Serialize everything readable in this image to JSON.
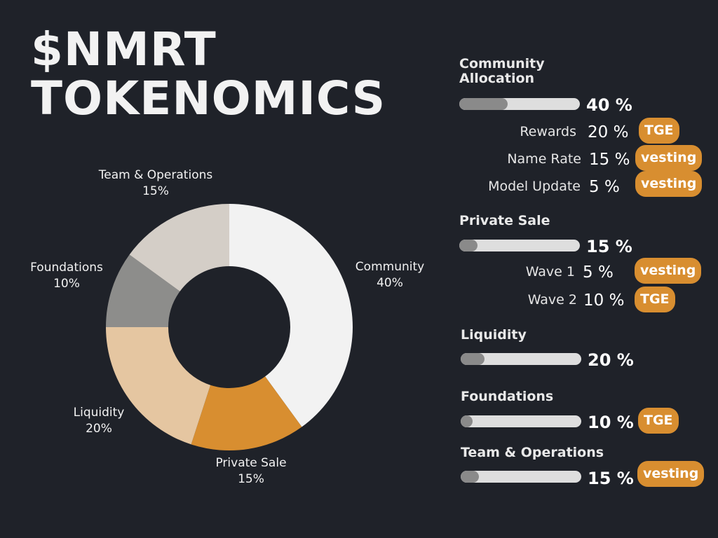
{
  "title": {
    "line1": "$NMRT",
    "line2": "TOKENOMICS"
  },
  "colors": {
    "background": "#1f2229",
    "community": "#f2f2f2",
    "private_sale": "#d88e30",
    "liquidity": "#e5c6a1",
    "foundations": "#8d8d8b",
    "team_operations": "#d4cec7",
    "accent": "#d88e30",
    "bar_track": "#dedede",
    "bar_fill": "#8a8a8a"
  },
  "chart_data": {
    "type": "pie",
    "donut": true,
    "categories": [
      "Community",
      "Private Sale",
      "Liquidity",
      "Foundations",
      "Team & Operations"
    ],
    "values": [
      40,
      15,
      20,
      10,
      15
    ],
    "value_labels": [
      "40%",
      "15%",
      "20%",
      "10%",
      "15%"
    ],
    "colors": [
      "#f2f2f2",
      "#d88e30",
      "#e5c6a1",
      "#8d8d8b",
      "#d4cec7"
    ]
  },
  "allocations": [
    {
      "title": "Community Allocation",
      "percent_label": "40 %",
      "fraction": 0.4,
      "sub": [
        {
          "name": "Rewards",
          "percent": "20 %",
          "tag": "TGE"
        },
        {
          "name": "Name Rate",
          "percent": "15 %",
          "tag": "vesting"
        },
        {
          "name": "Model Update",
          "percent": "5 %",
          "tag": "vesting"
        }
      ]
    },
    {
      "title": "Private Sale",
      "percent_label": "15 %",
      "fraction": 0.15,
      "sub": [
        {
          "name": "Wave 1",
          "percent": "5 %",
          "tag": "vesting"
        },
        {
          "name": "Wave 2",
          "percent": "10 %",
          "tag": "TGE"
        }
      ]
    },
    {
      "title": "Liquidity",
      "percent_label": "20 %",
      "fraction": 0.2,
      "sub": []
    },
    {
      "title": "Foundations",
      "percent_label": "10 %",
      "fraction": 0.1,
      "tag": "TGE",
      "sub": []
    },
    {
      "title": "Team & Operations",
      "percent_label": "15 %",
      "fraction": 0.15,
      "tag": "vesting",
      "sub": []
    }
  ]
}
